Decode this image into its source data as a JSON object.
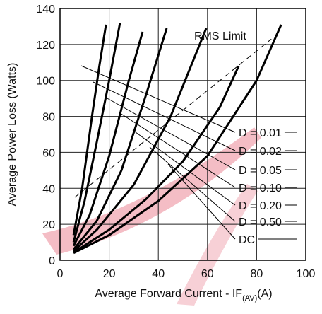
{
  "chart_data": {
    "type": "line",
    "ylabel": "Average  Power Loss  (Watts)",
    "xlabel": "Average Forward Current - IF",
    "xlabel_sub": "(AV)",
    "xlabel_unit": "(A)",
    "xlim": [
      0,
      100
    ],
    "xticks": [
      0,
      20,
      40,
      60,
      80,
      100
    ],
    "ylim": [
      0,
      140
    ],
    "yticks": [
      0,
      20,
      40,
      60,
      80,
      100,
      120,
      140
    ],
    "grid": true,
    "series": [
      {
        "name": "D = 0.01",
        "color": "#000000",
        "x": [
          5.5,
          9,
          13,
          16,
          18.7
        ],
        "values": [
          14,
          40,
          80,
          108,
          131
        ]
      },
      {
        "name": "D = 0.02",
        "color": "#000000",
        "x": [
          5.5,
          10,
          15,
          20,
          24.4
        ],
        "values": [
          10,
          33,
          66,
          100,
          132
        ]
      },
      {
        "name": "D = 0.05",
        "color": "#000000",
        "x": [
          5.5,
          12,
          20,
          28,
          33.6
        ],
        "values": [
          8,
          25,
          58,
          100,
          127
        ]
      },
      {
        "name": "D = 0.10",
        "color": "#000000",
        "x": [
          5.5,
          15,
          25,
          35,
          43.4
        ],
        "values": [
          6,
          22,
          50,
          92,
          129
        ]
      },
      {
        "name": "D = 0.20",
        "color": "#000000",
        "x": [
          5.5,
          15,
          30,
          45,
          59.5
        ],
        "values": [
          5,
          17,
          42,
          80,
          129
        ]
      },
      {
        "name": "D = 0.50",
        "color": "#000000",
        "x": [
          5.5,
          20,
          35,
          50,
          65,
          72.7
        ],
        "values": [
          4.3,
          17,
          34,
          55,
          85,
          108
        ]
      },
      {
        "name": "DC",
        "color": "#000000",
        "x": [
          5.5,
          20,
          40,
          60,
          80,
          90
        ],
        "values": [
          4,
          14,
          33,
          58,
          100,
          131
        ]
      },
      {
        "name": "RMS Limit",
        "color": "#000000",
        "dashed": true,
        "x": [
          6,
          86
        ],
        "values": [
          35,
          123
        ]
      }
    ]
  }
}
